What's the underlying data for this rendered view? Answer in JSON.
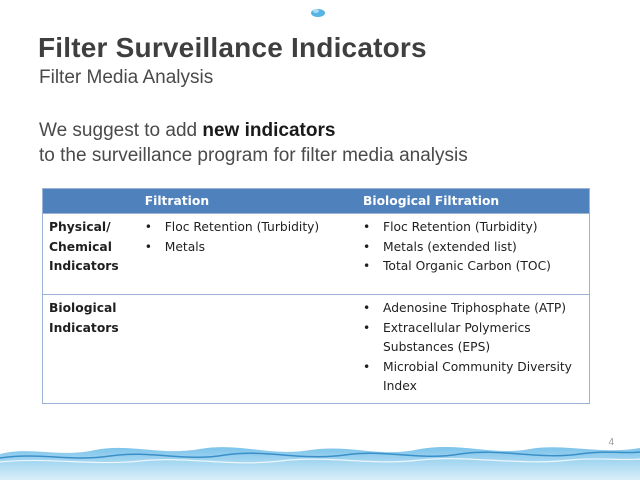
{
  "slide": {
    "title": "Filter Surveillance Indicators",
    "subtitle": "Filter Media Analysis",
    "lead_part1": "We suggest to add ",
    "lead_bold": "new indicators",
    "lead_line2": "to the surveillance program for filter media analysis",
    "page_number": "4"
  },
  "table": {
    "headers": [
      "",
      "Filtration",
      "Biological Filtration"
    ],
    "rows": [
      {
        "label_line1": "Physical/",
        "label_line2": "Chemical",
        "label_line3": "Indicators",
        "filtration": [
          "Floc Retention (Turbidity)",
          "Metals"
        ],
        "biological": [
          "Floc Retention (Turbidity)",
          "Metals (extended list)",
          "Total Organic Carbon (TOC)"
        ]
      },
      {
        "label_line1": "Biological",
        "label_line2": "Indicators",
        "filtration": [],
        "biological": [
          "Adenosine Triphosphate (ATP)",
          "Extracellular Polymerics Substances (EPS)",
          "Microbial Community Diversity Index"
        ]
      }
    ]
  },
  "colors": {
    "header_blue": "#4f81bd",
    "water_blue": "#5aa6d8"
  }
}
